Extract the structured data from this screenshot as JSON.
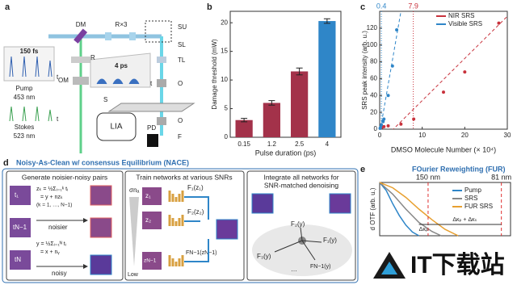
{
  "panel_a": {
    "letter": "a",
    "dm": "DM",
    "relay": "R×3",
    "su": "SU",
    "sl": "SL",
    "tl": "TL",
    "o1": "O",
    "s": "S",
    "o2": "O",
    "f": "F",
    "pd": "PD",
    "lia": "LIA",
    "r": "R",
    "om": "OM",
    "fs": "150 fs",
    "ps": "4 ps",
    "pump": "Pump",
    "pump_wl": "453 nm",
    "stokes": "Stokes",
    "stokes_wl": "523 nm",
    "t1": "t",
    "t2": "t",
    "t3": "t"
  },
  "panel_d": {
    "letter": "d",
    "title": "Noisy-As-Clean w/ consensus Equilibrium (NACE)",
    "box1": {
      "header": "Generate noisier-noisy pairs",
      "eq1": "zₖ = ½Σᵢ₌₁ᵏ tᵢ",
      "eq2": "= y + nzₖ",
      "eq3": "(k = 1, …, N−1)",
      "eq4": "y = ½Σᵢ₌₁ᴺ tᵢ",
      "eq5": "= x + nᵧ",
      "noisier": "noisier",
      "noisy": "noisy",
      "t1": "t₁",
      "tn1": "tN−1",
      "tn": "tN"
    },
    "box2": {
      "header": "Train networks at various SNRs",
      "sigma": "σnₐ",
      "low": "Low",
      "f1": "F₁(z₁)",
      "f2": "F₂(z₂)",
      "fn": "FN−1(zN−1)",
      "z1": "z₁",
      "z2": "z₂",
      "zn": "zN−1"
    },
    "box3": {
      "header1": "Integrate all networks for",
      "header2": "SNR-matched denoising",
      "f1": "F₁(y)",
      "f2": "F₂(y)",
      "f3": "F₃(y)",
      "fn": "FN−1(y)",
      "dots": "…"
    }
  },
  "watermark": "IT下载站",
  "chart_data": [
    {
      "type": "bar",
      "panel": "b",
      "xlabel": "Pulse duration (ps)",
      "ylabel": "Damage threshold (mW)",
      "categories": [
        "0.15",
        "1.2",
        "2.5",
        "4"
      ],
      "values": [
        3.0,
        6.0,
        11.5,
        20.3
      ],
      "errors": [
        0.3,
        0.4,
        0.6,
        0.4
      ],
      "colors": [
        "#a3324a",
        "#a3324a",
        "#a3324a",
        "#2f86c8"
      ],
      "ylim": [
        0,
        22
      ],
      "yticks": [
        0,
        5,
        10,
        15,
        20
      ]
    },
    {
      "type": "scatter",
      "panel": "c",
      "xlabel": "DMSO Molecule Number (× 10⁴)",
      "ylabel": "SRS peak intensity (arb. u.)",
      "xlim": [
        0,
        30
      ],
      "xticks": [
        0,
        10,
        20,
        30
      ],
      "ylim": [
        0,
        140
      ],
      "yticks": [
        0,
        20,
        40,
        60,
        80,
        100,
        120
      ],
      "series": [
        {
          "name": "NIR SRS",
          "color": "#c8323c",
          "x": [
            0.5,
            1,
            2,
            5,
            8,
            15,
            20,
            28
          ],
          "values": [
            2,
            3,
            4,
            6,
            12,
            44,
            68,
            126
          ]
        },
        {
          "name": "Visible SRS",
          "color": "#2f86c8",
          "x": [
            0.1,
            0.2,
            0.4,
            0.8,
            1,
            2,
            3,
            4
          ],
          "values": [
            1,
            2,
            5,
            9,
            12,
            40,
            75,
            118
          ]
        }
      ],
      "fits": [
        {
          "color": "#c8323c",
          "x": [
            0,
            30
          ],
          "values": [
            -16,
            134
          ]
        },
        {
          "color": "#2f86c8",
          "x": [
            0,
            5
          ],
          "values": [
            -5,
            140
          ]
        }
      ],
      "vlines": [
        {
          "value": 0.4,
          "color": "#2f86c8"
        },
        {
          "value": 7.9,
          "color": "#c8323c"
        }
      ]
    },
    {
      "type": "line",
      "panel": "e",
      "title": "FOurier Reweighting (FUR)",
      "ylabel": "d OTF (arb. u.)",
      "xlim": [
        0,
        1
      ],
      "ylim": [
        0,
        1
      ],
      "series": [
        {
          "name": "Pump",
          "color": "#2f86c8",
          "x": [
            0,
            0.05,
            0.1,
            0.15,
            0.2,
            0.25,
            0.3
          ],
          "values": [
            1,
            0.85,
            0.6,
            0.38,
            0.2,
            0.07,
            0
          ]
        },
        {
          "name": "SRS",
          "color": "#888888",
          "x": [
            0,
            0.1,
            0.2,
            0.3,
            0.4,
            0.47
          ],
          "values": [
            1,
            0.78,
            0.5,
            0.25,
            0.08,
            0
          ]
        },
        {
          "name": "FUR SRS",
          "color": "#e8a030",
          "x": [
            0,
            0.1,
            0.2,
            0.3,
            0.4,
            0.5,
            0.6
          ],
          "values": [
            1,
            0.9,
            0.72,
            0.5,
            0.3,
            0.12,
            0
          ]
        }
      ],
      "vlines": [
        {
          "value": 0.37,
          "label": "150 nm",
          "color": "#e03030"
        },
        {
          "value": 0.93,
          "label": "81 nm",
          "color": "#e03030"
        }
      ],
      "annotations": [
        "Δκₚ",
        "Δκₚ + Δκₛ"
      ]
    }
  ]
}
